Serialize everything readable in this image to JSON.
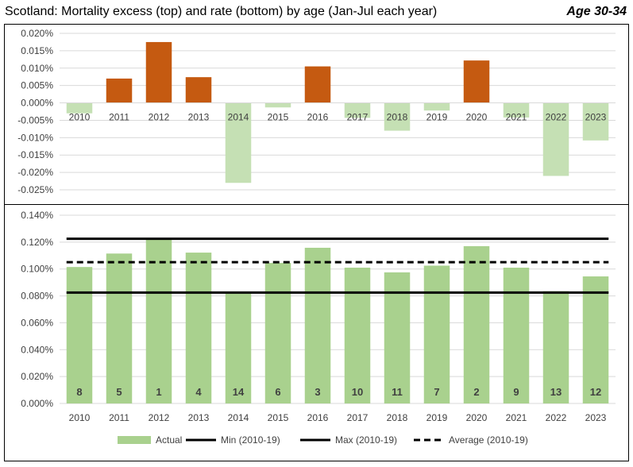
{
  "header": {
    "title": "Scotland: Mortality excess (top) and rate (bottom) by age (Jan-Jul each year)",
    "age_group": "Age 30-34"
  },
  "colors": {
    "positive_excess": "#c55a11",
    "negative_excess": "#c5e0b4",
    "actual_bar": "#a9d18e",
    "reference_line": "#000000"
  },
  "chart_data": [
    {
      "type": "bar",
      "categories": [
        "2010",
        "2011",
        "2012",
        "2013",
        "2014",
        "2015",
        "2016",
        "2017",
        "2018",
        "2019",
        "2020",
        "2021",
        "2022",
        "2023"
      ],
      "values": [
        -0.003,
        0.007,
        0.0175,
        0.0074,
        -0.023,
        -0.0013,
        0.0105,
        -0.0043,
        -0.008,
        -0.0022,
        0.0122,
        -0.0042,
        -0.021,
        -0.0108
      ],
      "ylim": [
        -0.025,
        0.02
      ],
      "yticks": [
        0.02,
        0.015,
        0.01,
        0.005,
        0.0,
        -0.005,
        -0.01,
        -0.015,
        -0.02,
        -0.025
      ],
      "ytick_labels": [
        "0.020%",
        "0.015%",
        "0.010%",
        "0.005%",
        "0.000%",
        "-0.005%",
        "-0.010%",
        "-0.015%",
        "-0.020%",
        "-0.025%"
      ],
      "value_unit": "%",
      "grid": true
    },
    {
      "type": "bar",
      "categories": [
        "2010",
        "2011",
        "2012",
        "2013",
        "2014",
        "2015",
        "2016",
        "2017",
        "2018",
        "2019",
        "2020",
        "2021",
        "2022",
        "2023"
      ],
      "series": [
        {
          "name": "Actual",
          "values": [
            0.1015,
            0.1115,
            0.1225,
            0.1122,
            0.0825,
            0.1045,
            0.1158,
            0.101,
            0.0975,
            0.1025,
            0.117,
            0.101,
            0.0835,
            0.0945
          ]
        }
      ],
      "rank_labels": [
        "8",
        "5",
        "1",
        "4",
        "14",
        "6",
        "3",
        "10",
        "11",
        "7",
        "2",
        "9",
        "13",
        "12"
      ],
      "reference_lines": [
        {
          "name": "Min (2010-19)",
          "value": 0.0825,
          "style": "solid"
        },
        {
          "name": "Max (2010-19)",
          "value": 0.1225,
          "style": "solid"
        },
        {
          "name": "Average (2010-19)",
          "value": 0.1051,
          "style": "dashed"
        }
      ],
      "ylim": [
        0,
        0.14
      ],
      "yticks": [
        0.14,
        0.12,
        0.1,
        0.08,
        0.06,
        0.04,
        0.02,
        0.0
      ],
      "ytick_labels": [
        "0.140%",
        "0.120%",
        "0.100%",
        "0.080%",
        "0.060%",
        "0.040%",
        "0.020%",
        "0.000%"
      ],
      "value_unit": "%",
      "grid": true,
      "legend": {
        "position": "bottom",
        "items": [
          "Actual",
          "Min (2010-19)",
          "Max (2010-19)",
          "Average (2010-19)"
        ]
      }
    }
  ]
}
